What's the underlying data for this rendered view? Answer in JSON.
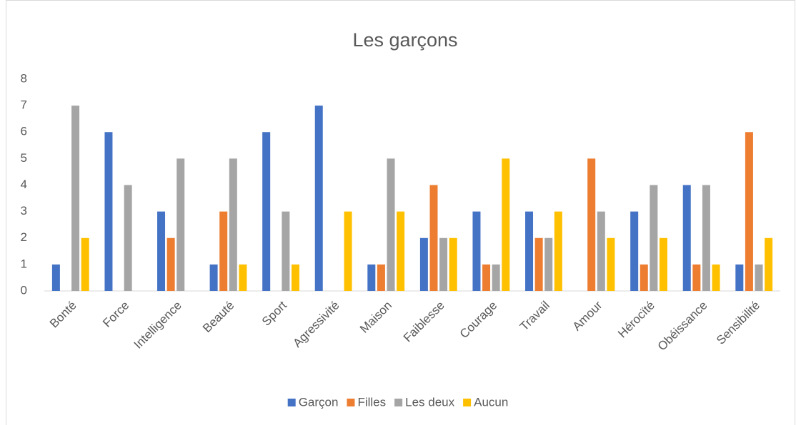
{
  "chart_data": {
    "type": "bar",
    "title": "Les garçons",
    "categories": [
      "Bonté",
      "Force",
      "Intelligence",
      "Beauté",
      "Sport",
      "Agressivité",
      "Maison",
      "Faiblesse",
      "Courage",
      "Travail",
      "Amour",
      "Hérocïté",
      "Obéissance",
      "Sensibilité"
    ],
    "series": [
      {
        "name": "Garçon",
        "color": "#4472c4",
        "values": [
          1,
          6,
          3,
          1,
          6,
          7,
          1,
          2,
          3,
          3,
          0,
          3,
          4,
          1
        ]
      },
      {
        "name": "Filles",
        "color": "#ed7d31",
        "values": [
          0,
          0,
          2,
          3,
          0,
          0,
          1,
          4,
          1,
          2,
          5,
          1,
          1,
          6
        ]
      },
      {
        "name": "Les deux",
        "color": "#a5a5a5",
        "values": [
          7,
          4,
          5,
          5,
          3,
          0,
          5,
          2,
          1,
          2,
          3,
          4,
          4,
          1
        ]
      },
      {
        "name": "Aucun",
        "color": "#ffc000",
        "values": [
          2,
          0,
          0,
          1,
          1,
          3,
          3,
          2,
          5,
          3,
          2,
          2,
          1,
          2
        ]
      }
    ],
    "ylim": [
      0,
      8
    ],
    "yticks": [
      0,
      1,
      2,
      3,
      4,
      5,
      6,
      7,
      8
    ],
    "grid": false,
    "legend": "bottom"
  }
}
